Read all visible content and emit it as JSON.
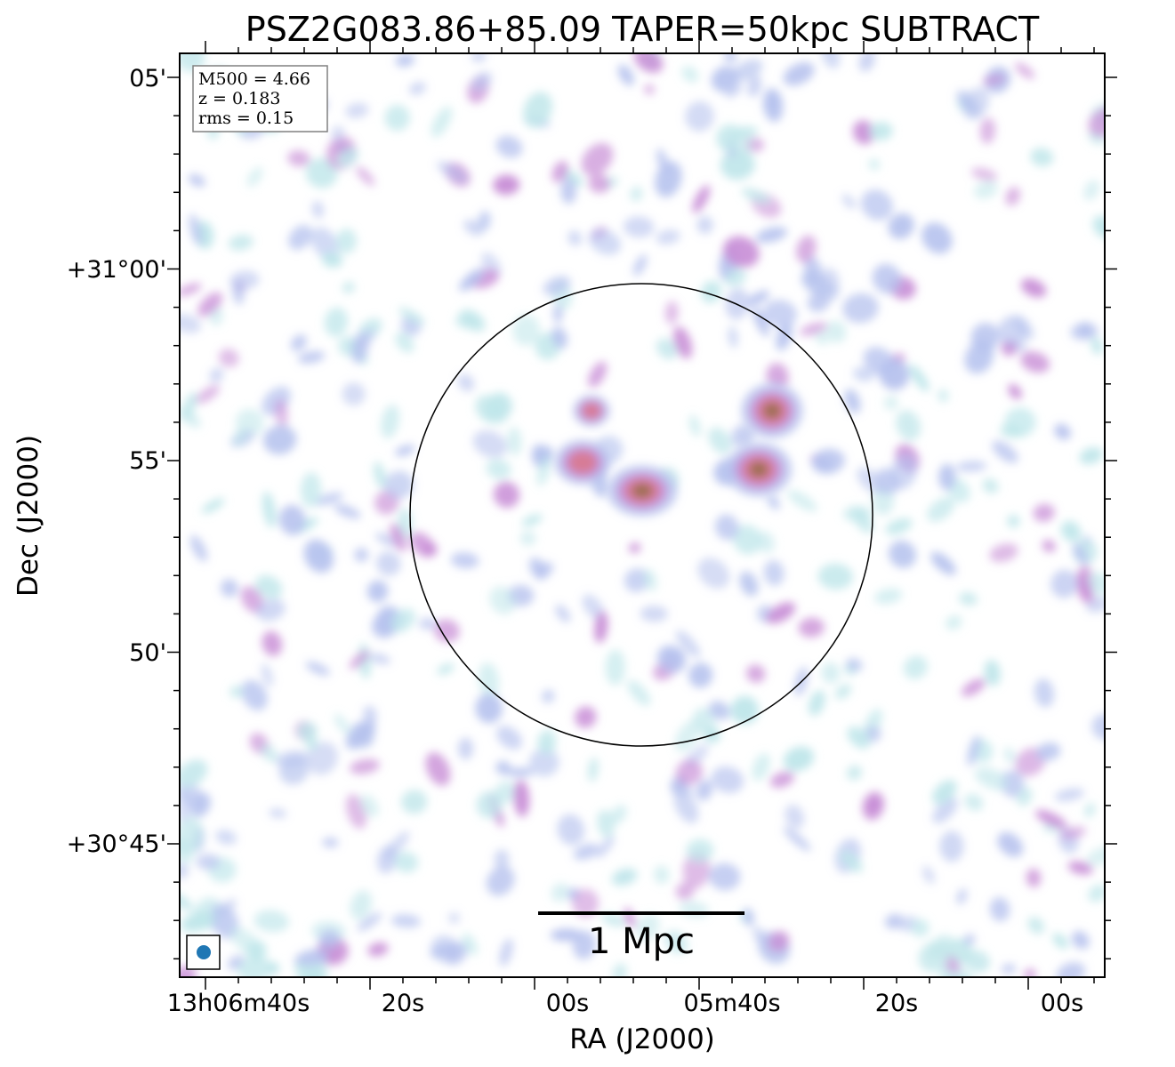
{
  "chart_data": {
    "type": "heatmap",
    "title": "PSZ2G083.86+85.09 TAPER=50kpc SUBTRACT",
    "xlabel": "RA (J2000)",
    "ylabel": "Dec (J2000)",
    "x_ticks": [
      "13h06m40s",
      "20s",
      "00s",
      "05m40s",
      "20s",
      "00s"
    ],
    "y_ticks": [
      "05'",
      "+31°00'",
      "55'",
      "50'",
      "+30°45'"
    ],
    "info_box": {
      "line1": "M500 = 4.66",
      "line2": "z = 0.183",
      "line3": "rms = 0.15"
    },
    "scale_bar_label": "1 Mpc",
    "colors": {
      "faint": "#bfe6ea",
      "low": "#b6c2ee",
      "mid": "#c88dd6",
      "high": "#d97a8f",
      "peak": "#8a6a3a",
      "beam": "#1f77b4"
    },
    "bright_sources": [
      {
        "name": "central",
        "level": 1.0
      },
      {
        "name": "north-east",
        "level": 0.9
      },
      {
        "name": "east",
        "level": 0.85
      },
      {
        "name": "west",
        "level": 0.7
      },
      {
        "name": "north-west",
        "level": 0.55
      }
    ]
  }
}
